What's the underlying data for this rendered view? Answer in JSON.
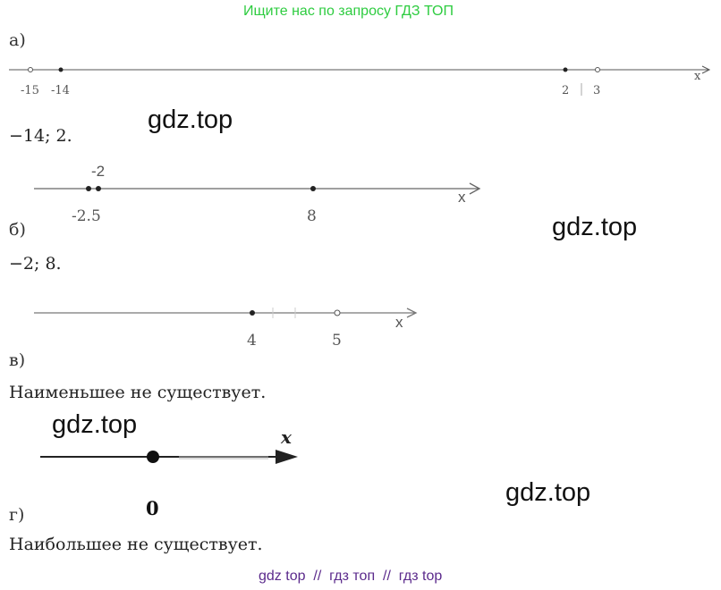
{
  "banner": "Ищите нас по запросу ГДЗ ТОП",
  "watermarks": [
    "gdz.top",
    "gdz.top",
    "gdz.top",
    "gdz.top"
  ],
  "footer": "gdz top  //  гдз топ  //  гдз top",
  "parts": {
    "a": {
      "label": "а)",
      "axis_label": "x",
      "ticks": [
        "-15",
        "-14",
        "2",
        "3"
      ],
      "answer": "−14;  2."
    },
    "b": {
      "label": "б)",
      "axis_label": "x",
      "ticks": [
        "-2",
        "-2.5",
        "8"
      ],
      "answer": "−2;  8."
    },
    "c": {
      "label": "в)",
      "axis_label": "x",
      "ticks": [
        "4",
        "5"
      ],
      "answer": "Наименьшее не существует."
    },
    "d": {
      "label": "г)",
      "axis_label": "x",
      "ticks": [
        "0"
      ],
      "answer": "Наибольшее не существует."
    }
  }
}
